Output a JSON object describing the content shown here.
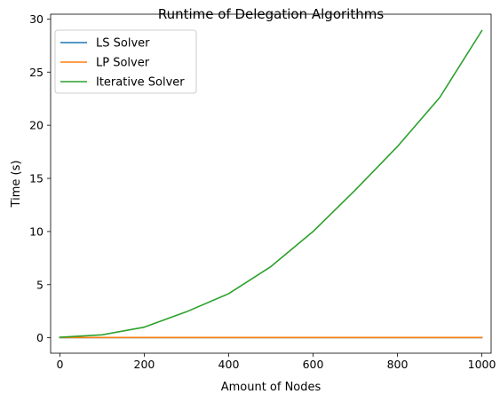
{
  "chart_data": {
    "type": "line",
    "title": "Runtime of Delegation Algorithms",
    "xlabel": "Amount of Nodes",
    "ylabel": "Time (s)",
    "xlim": [
      -22,
      1022
    ],
    "ylim": [
      -1.45,
      30.45
    ],
    "xticks": [
      0,
      200,
      400,
      600,
      800,
      1000
    ],
    "yticks": [
      0,
      5,
      10,
      15,
      20,
      25,
      30
    ],
    "grid": false,
    "legend_position": "upper left",
    "x": [
      0,
      100,
      200,
      300,
      400,
      500,
      600,
      700,
      800,
      900,
      1000
    ],
    "series": [
      {
        "name": "LS Solver",
        "color": "#1f77b4",
        "values": [
          0.02,
          0.02,
          0.02,
          0.02,
          0.02,
          0.02,
          0.02,
          0.02,
          0.02,
          0.02,
          0.02
        ]
      },
      {
        "name": "LP Solver",
        "color": "#ff7f0e",
        "values": [
          0.03,
          0.03,
          0.03,
          0.03,
          0.03,
          0.03,
          0.03,
          0.03,
          0.03,
          0.03,
          0.03
        ]
      },
      {
        "name": "Iterative Solver",
        "color": "#2ca02c",
        "values": [
          0.05,
          0.28,
          1.0,
          2.45,
          4.15,
          6.7,
          10.0,
          13.9,
          18.0,
          22.6,
          28.9
        ]
      }
    ]
  }
}
